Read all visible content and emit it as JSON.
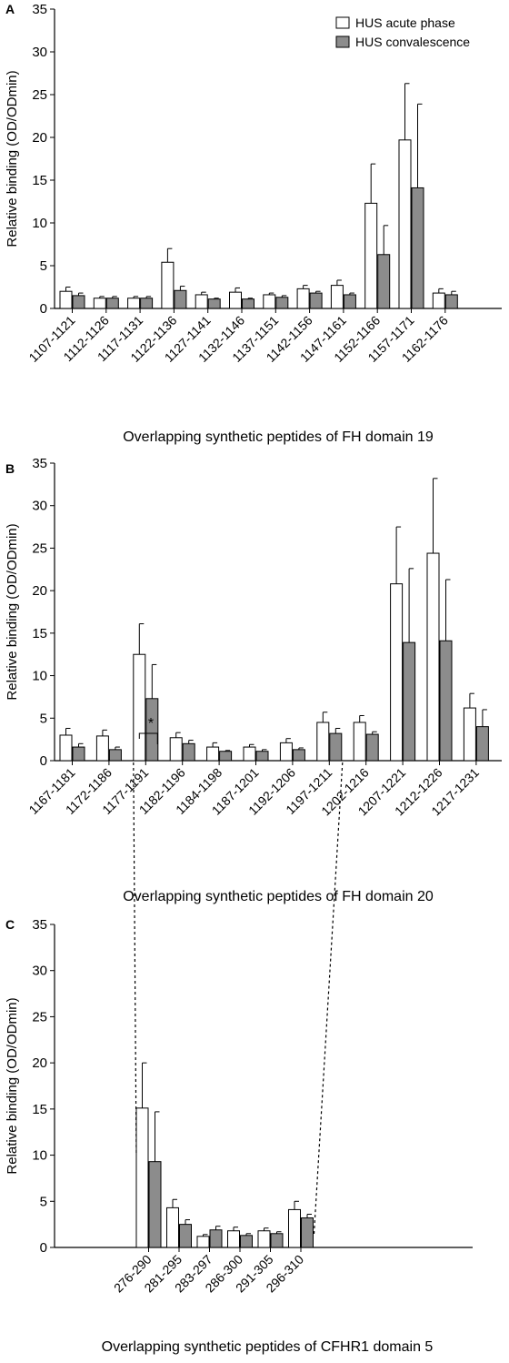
{
  "chart_data": [
    {
      "panel": "A",
      "type": "bar",
      "ylabel": "Relative binding (OD/ODmin)",
      "xlabel": "Overlapping synthetic peptides of FH domain 19",
      "ylim": [
        0,
        35
      ],
      "yticks": [
        0,
        5,
        10,
        15,
        20,
        25,
        30,
        35
      ],
      "legend": {
        "position": "top-right",
        "entries": [
          "HUS acute phase",
          "HUS convalescence"
        ]
      },
      "categories": [
        "1107-1121",
        "1112-1126",
        "1117-1131",
        "1122-1136",
        "1127-1141",
        "1132-1146",
        "1137-1151",
        "1142-1156",
        "1147-1161",
        "1152-1166",
        "1157-1171",
        "1162-1176"
      ],
      "series": [
        {
          "name": "HUS acute phase",
          "color": "#ffffff",
          "values": [
            2.0,
            1.2,
            1.2,
            5.4,
            1.6,
            1.9,
            1.6,
            2.3,
            2.7,
            12.3,
            19.7,
            1.8
          ],
          "errors": [
            0.5,
            0.2,
            0.2,
            1.6,
            0.3,
            0.5,
            0.2,
            0.4,
            0.6,
            4.6,
            6.6,
            0.5
          ]
        },
        {
          "name": "HUS convalescence",
          "color": "#8c8c8c",
          "values": [
            1.5,
            1.2,
            1.2,
            2.1,
            1.1,
            1.1,
            1.3,
            1.8,
            1.6,
            6.3,
            14.1,
            1.6
          ],
          "errors": [
            0.3,
            0.2,
            0.2,
            0.5,
            0.1,
            0.1,
            0.2,
            0.2,
            0.2,
            3.4,
            9.8,
            0.4
          ]
        }
      ]
    },
    {
      "panel": "B",
      "type": "bar",
      "ylabel": "Relative binding (OD/ODmin)",
      "xlabel": "Overlapping synthetic peptides of FH domain 20",
      "ylim": [
        0,
        35
      ],
      "yticks": [
        0,
        5,
        10,
        15,
        20,
        25,
        30,
        35
      ],
      "categories": [
        "1167-1181",
        "1172-1186",
        "1177-1191",
        "1182-1196",
        "1184-1198",
        "1187-1201",
        "1192-1206",
        "1197-1211",
        "1202-1216",
        "1207-1221",
        "1212-1226",
        "1217-1231"
      ],
      "series": [
        {
          "name": "HUS acute phase",
          "color": "#ffffff",
          "values": [
            3.0,
            2.9,
            12.5,
            2.7,
            1.6,
            1.6,
            2.1,
            4.5,
            4.5,
            20.8,
            24.4,
            6.2
          ],
          "errors": [
            0.8,
            0.7,
            3.6,
            0.6,
            0.5,
            0.3,
            0.5,
            1.2,
            0.8,
            6.7,
            8.8,
            1.7
          ]
        },
        {
          "name": "HUS convalescence",
          "color": "#8c8c8c",
          "values": [
            1.6,
            1.3,
            7.3,
            2.0,
            1.1,
            1.1,
            1.3,
            3.2,
            3.1,
            13.9,
            14.1,
            4.0
          ],
          "errors": [
            0.4,
            0.3,
            4.0,
            0.4,
            0.1,
            0.2,
            0.2,
            0.6,
            0.3,
            8.7,
            7.2,
            2.0
          ]
        }
      ],
      "annotations": [
        {
          "text": "*",
          "category": "1177-1191"
        }
      ]
    },
    {
      "panel": "C",
      "type": "bar",
      "ylabel": "Relative binding (OD/ODmin)",
      "xlabel": "Overlapping synthetic peptides of CFHR1 domain 5",
      "ylim": [
        0,
        35
      ],
      "yticks": [
        0,
        5,
        10,
        15,
        20,
        25,
        30,
        35
      ],
      "categories": [
        "276-290",
        "281-295",
        "283-297",
        "286-300",
        "291-305",
        "296-310"
      ],
      "series": [
        {
          "name": "HUS acute phase",
          "color": "#ffffff",
          "values": [
            15.1,
            4.3,
            1.2,
            1.8,
            1.8,
            4.1
          ],
          "errors": [
            4.9,
            0.9,
            0.2,
            0.4,
            0.3,
            0.9
          ]
        },
        {
          "name": "HUS convalescence",
          "color": "#8c8c8c",
          "values": [
            9.3,
            2.5,
            1.9,
            1.3,
            1.5,
            3.2
          ],
          "errors": [
            5.4,
            0.5,
            0.4,
            0.2,
            0.2,
            0.4
          ]
        }
      ]
    }
  ]
}
